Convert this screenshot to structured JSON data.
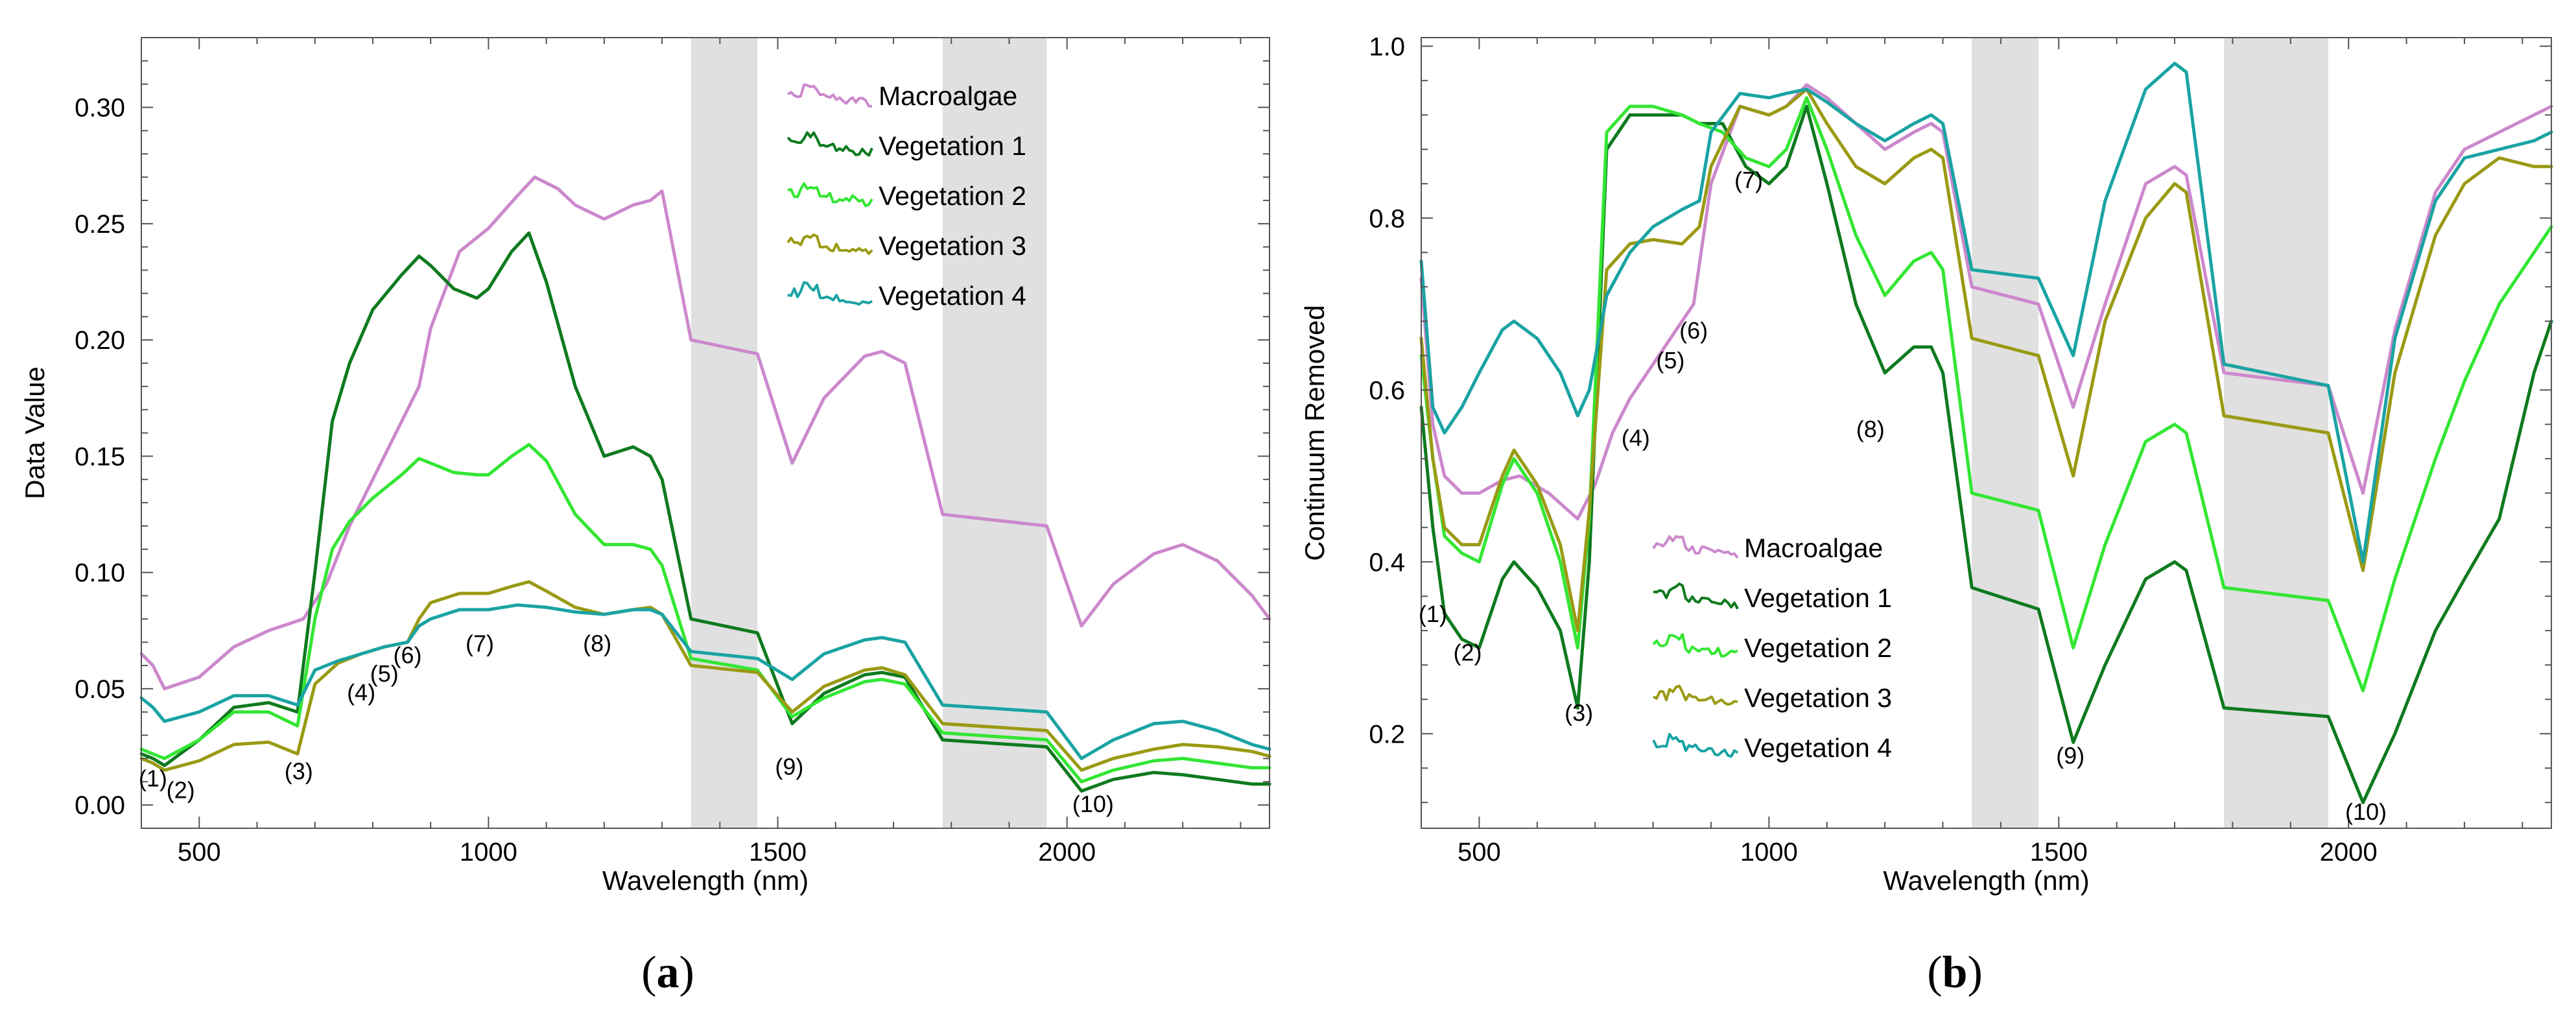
{
  "chart_data": [
    {
      "id": "a",
      "type": "line",
      "panel_label": "a",
      "xlabel": "Wavelength (nm)",
      "ylabel": "Data Value",
      "xlim": [
        400,
        2350
      ],
      "ylim": [
        -0.01,
        0.33
      ],
      "xticks": [
        500,
        1000,
        1500,
        2000
      ],
      "xtick_labels": [
        "500",
        "1000",
        "1500",
        "2000"
      ],
      "yticks": [
        0.0,
        0.05,
        0.1,
        0.15,
        0.2,
        0.25,
        0.3
      ],
      "ytick_labels": [
        "0.00",
        "0.05",
        "0.10",
        "0.15",
        "0.20",
        "0.25",
        "0.30"
      ],
      "legend_position": "top-center",
      "shaded_bands": [
        [
          1350,
          1465
        ],
        [
          1785,
          1965
        ]
      ],
      "annotations": [
        {
          "text": "(1)",
          "x": 420,
          "y": 0.008
        },
        {
          "text": "(2)",
          "x": 468,
          "y": 0.003
        },
        {
          "text": "(3)",
          "x": 672,
          "y": 0.011
        },
        {
          "text": "(4)",
          "x": 780,
          "y": 0.045
        },
        {
          "text": "(5)",
          "x": 820,
          "y": 0.053
        },
        {
          "text": "(6)",
          "x": 860,
          "y": 0.061
        },
        {
          "text": "(7)",
          "x": 985,
          "y": 0.066
        },
        {
          "text": "(8)",
          "x": 1188,
          "y": 0.066
        },
        {
          "text": "(9)",
          "x": 1520,
          "y": 0.013
        },
        {
          "text": "(10)",
          "x": 2045,
          "y": -0.003
        }
      ],
      "series": [
        {
          "name": "Macroalgae",
          "color": "#cc88cc",
          "x": [
            400,
            420,
            440,
            500,
            560,
            620,
            680,
            720,
            760,
            800,
            840,
            880,
            900,
            950,
            1000,
            1050,
            1080,
            1120,
            1150,
            1200,
            1250,
            1280,
            1300,
            1350,
            1465,
            1525,
            1580,
            1650,
            1680,
            1720,
            1785,
            1965,
            2025,
            2080,
            2150,
            2200,
            2260,
            2320,
            2350
          ],
          "y": [
            0.065,
            0.06,
            0.05,
            0.055,
            0.068,
            0.075,
            0.08,
            0.095,
            0.12,
            0.14,
            0.16,
            0.18,
            0.205,
            0.238,
            0.248,
            0.262,
            0.27,
            0.265,
            0.258,
            0.252,
            0.258,
            0.26,
            0.264,
            0.2,
            0.194,
            0.147,
            0.175,
            0.193,
            0.195,
            0.19,
            0.125,
            0.12,
            0.077,
            0.095,
            0.108,
            0.112,
            0.105,
            0.09,
            0.08
          ]
        },
        {
          "name": "Vegetation 1",
          "color": "#0e7a1e",
          "x": [
            400,
            420,
            440,
            500,
            560,
            620,
            670,
            700,
            730,
            760,
            800,
            850,
            880,
            900,
            940,
            980,
            1000,
            1040,
            1070,
            1100,
            1150,
            1200,
            1250,
            1280,
            1300,
            1350,
            1465,
            1525,
            1580,
            1650,
            1680,
            1720,
            1785,
            1965,
            2025,
            2080,
            2150,
            2200,
            2260,
            2320,
            2350
          ],
          "y": [
            0.022,
            0.02,
            0.017,
            0.028,
            0.042,
            0.044,
            0.04,
            0.1,
            0.165,
            0.19,
            0.213,
            0.228,
            0.236,
            0.232,
            0.222,
            0.218,
            0.222,
            0.238,
            0.246,
            0.225,
            0.18,
            0.15,
            0.154,
            0.15,
            0.14,
            0.08,
            0.074,
            0.035,
            0.048,
            0.056,
            0.057,
            0.055,
            0.028,
            0.025,
            0.006,
            0.011,
            0.014,
            0.013,
            0.011,
            0.009,
            0.009
          ]
        },
        {
          "name": "Vegetation 2",
          "color": "#33e633",
          "x": [
            400,
            420,
            440,
            500,
            560,
            620,
            670,
            700,
            730,
            760,
            800,
            850,
            880,
            900,
            940,
            980,
            1000,
            1040,
            1070,
            1100,
            1150,
            1200,
            1250,
            1280,
            1300,
            1350,
            1465,
            1525,
            1580,
            1650,
            1680,
            1720,
            1785,
            1965,
            2025,
            2080,
            2150,
            2200,
            2260,
            2320,
            2350
          ],
          "y": [
            0.024,
            0.022,
            0.02,
            0.028,
            0.04,
            0.04,
            0.034,
            0.08,
            0.11,
            0.122,
            0.132,
            0.142,
            0.149,
            0.147,
            0.143,
            0.142,
            0.142,
            0.15,
            0.155,
            0.148,
            0.125,
            0.112,
            0.112,
            0.11,
            0.103,
            0.063,
            0.058,
            0.038,
            0.046,
            0.053,
            0.054,
            0.052,
            0.031,
            0.028,
            0.01,
            0.015,
            0.019,
            0.02,
            0.018,
            0.016,
            0.016
          ]
        },
        {
          "name": "Vegetation 3",
          "color": "#9a9a14",
          "x": [
            400,
            420,
            440,
            500,
            560,
            620,
            670,
            700,
            740,
            780,
            820,
            860,
            880,
            900,
            950,
            1000,
            1040,
            1070,
            1100,
            1150,
            1200,
            1250,
            1280,
            1300,
            1350,
            1465,
            1525,
            1580,
            1650,
            1680,
            1720,
            1785,
            1965,
            2025,
            2080,
            2150,
            2200,
            2260,
            2320,
            2350
          ],
          "y": [
            0.02,
            0.018,
            0.015,
            0.019,
            0.026,
            0.027,
            0.022,
            0.052,
            0.061,
            0.065,
            0.068,
            0.07,
            0.08,
            0.087,
            0.091,
            0.091,
            0.094,
            0.096,
            0.092,
            0.085,
            0.082,
            0.084,
            0.085,
            0.082,
            0.06,
            0.057,
            0.04,
            0.051,
            0.058,
            0.059,
            0.056,
            0.035,
            0.032,
            0.015,
            0.02,
            0.024,
            0.026,
            0.025,
            0.023,
            0.021
          ]
        },
        {
          "name": "Vegetation 4",
          "color": "#1aa3a3",
          "x": [
            400,
            420,
            440,
            500,
            560,
            620,
            670,
            700,
            740,
            780,
            820,
            860,
            880,
            900,
            950,
            1000,
            1050,
            1100,
            1150,
            1200,
            1250,
            1280,
            1300,
            1350,
            1465,
            1525,
            1580,
            1650,
            1680,
            1720,
            1785,
            1965,
            2025,
            2080,
            2150,
            2200,
            2260,
            2320,
            2350
          ],
          "y": [
            0.046,
            0.042,
            0.036,
            0.04,
            0.047,
            0.047,
            0.043,
            0.058,
            0.062,
            0.065,
            0.068,
            0.07,
            0.077,
            0.08,
            0.084,
            0.084,
            0.086,
            0.085,
            0.083,
            0.082,
            0.084,
            0.084,
            0.082,
            0.066,
            0.063,
            0.054,
            0.065,
            0.071,
            0.072,
            0.07,
            0.043,
            0.04,
            0.02,
            0.028,
            0.035,
            0.036,
            0.032,
            0.026,
            0.024
          ]
        }
      ]
    },
    {
      "id": "b",
      "type": "line",
      "panel_label": "b",
      "xlabel": "Wavelength (nm)",
      "ylabel": "Continuum Removed",
      "xlim": [
        400,
        2350
      ],
      "ylim": [
        0.09,
        1.01
      ],
      "xticks": [
        500,
        1000,
        1500,
        2000
      ],
      "xtick_labels": [
        "500",
        "1000",
        "1500",
        "2000"
      ],
      "yticks": [
        0.2,
        0.4,
        0.6,
        0.8,
        1.0
      ],
      "ytick_labels": [
        "0.2",
        "0.4",
        "0.6",
        "0.8",
        "1.0"
      ],
      "legend_position": "center-left",
      "shaded_bands": [
        [
          1350,
          1465
        ],
        [
          1785,
          1965
        ]
      ],
      "annotations": [
        {
          "text": "(1)",
          "x": 420,
          "y": 0.33
        },
        {
          "text": "(2)",
          "x": 480,
          "y": 0.285
        },
        {
          "text": "(3)",
          "x": 672,
          "y": 0.215
        },
        {
          "text": "(4)",
          "x": 770,
          "y": 0.535
        },
        {
          "text": "(5)",
          "x": 830,
          "y": 0.625
        },
        {
          "text": "(6)",
          "x": 870,
          "y": 0.66
        },
        {
          "text": "(7)",
          "x": 965,
          "y": 0.835
        },
        {
          "text": "(8)",
          "x": 1175,
          "y": 0.545
        },
        {
          "text": "(9)",
          "x": 1520,
          "y": 0.165
        },
        {
          "text": "(10)",
          "x": 2030,
          "y": 0.1
        }
      ],
      "series": [
        {
          "name": "Macroalgae",
          "color": "#cc88cc",
          "x": [
            400,
            420,
            440,
            470,
            500,
            540,
            570,
            620,
            670,
            700,
            730,
            760,
            800,
            830,
            870,
            900,
            950,
            1000,
            1030,
            1065,
            1100,
            1150,
            1200,
            1250,
            1280,
            1300,
            1350,
            1465,
            1525,
            1580,
            1650,
            1700,
            1720,
            1785,
            1965,
            2025,
            2080,
            2150,
            2200,
            2260,
            2320,
            2350
          ],
          "y": [
            0.73,
            0.56,
            0.5,
            0.48,
            0.48,
            0.495,
            0.5,
            0.48,
            0.45,
            0.49,
            0.55,
            0.59,
            0.63,
            0.66,
            0.7,
            0.84,
            0.93,
            0.92,
            0.93,
            0.955,
            0.94,
            0.91,
            0.88,
            0.9,
            0.91,
            0.9,
            0.72,
            0.7,
            0.58,
            0.7,
            0.84,
            0.86,
            0.85,
            0.62,
            0.605,
            0.48,
            0.67,
            0.83,
            0.88,
            0.9,
            0.92,
            0.93
          ]
        },
        {
          "name": "Vegetation 1",
          "color": "#0e7a1e",
          "x": [
            400,
            420,
            440,
            470,
            500,
            540,
            560,
            600,
            640,
            670,
            690,
            720,
            760,
            800,
            850,
            880,
            920,
            960,
            1000,
            1030,
            1065,
            1100,
            1150,
            1200,
            1250,
            1280,
            1300,
            1350,
            1465,
            1525,
            1580,
            1650,
            1700,
            1720,
            1785,
            1965,
            2025,
            2080,
            2150,
            2200,
            2260,
            2320,
            2350
          ],
          "y": [
            0.58,
            0.44,
            0.34,
            0.31,
            0.3,
            0.38,
            0.4,
            0.37,
            0.32,
            0.23,
            0.4,
            0.88,
            0.92,
            0.92,
            0.92,
            0.91,
            0.91,
            0.86,
            0.84,
            0.86,
            0.93,
            0.84,
            0.7,
            0.62,
            0.65,
            0.65,
            0.62,
            0.37,
            0.345,
            0.19,
            0.28,
            0.38,
            0.4,
            0.39,
            0.23,
            0.22,
            0.12,
            0.2,
            0.32,
            0.38,
            0.45,
            0.62,
            0.68
          ]
        },
        {
          "name": "Vegetation 2",
          "color": "#33e633",
          "x": [
            400,
            420,
            440,
            470,
            500,
            540,
            560,
            600,
            640,
            670,
            690,
            720,
            760,
            800,
            850,
            880,
            920,
            960,
            1000,
            1030,
            1065,
            1100,
            1150,
            1200,
            1250,
            1280,
            1300,
            1350,
            1465,
            1525,
            1580,
            1650,
            1700,
            1720,
            1785,
            1965,
            2025,
            2080,
            2150,
            2200,
            2260,
            2320,
            2350
          ],
          "y": [
            0.64,
            0.52,
            0.43,
            0.41,
            0.4,
            0.49,
            0.52,
            0.48,
            0.4,
            0.3,
            0.45,
            0.9,
            0.93,
            0.93,
            0.92,
            0.91,
            0.9,
            0.87,
            0.86,
            0.88,
            0.94,
            0.88,
            0.78,
            0.71,
            0.75,
            0.76,
            0.74,
            0.48,
            0.46,
            0.3,
            0.42,
            0.54,
            0.56,
            0.55,
            0.37,
            0.355,
            0.25,
            0.38,
            0.52,
            0.61,
            0.7,
            0.76,
            0.79
          ]
        },
        {
          "name": "Vegetation 3",
          "color": "#9a9a14",
          "x": [
            400,
            420,
            440,
            470,
            500,
            540,
            560,
            600,
            640,
            670,
            690,
            720,
            760,
            800,
            850,
            880,
            900,
            950,
            1000,
            1030,
            1065,
            1100,
            1150,
            1200,
            1250,
            1280,
            1300,
            1350,
            1465,
            1525,
            1580,
            1650,
            1700,
            1720,
            1785,
            1965,
            2025,
            2080,
            2150,
            2200,
            2260,
            2320,
            2350
          ],
          "y": [
            0.66,
            0.52,
            0.44,
            0.42,
            0.42,
            0.5,
            0.53,
            0.49,
            0.42,
            0.32,
            0.46,
            0.74,
            0.77,
            0.775,
            0.77,
            0.79,
            0.86,
            0.93,
            0.92,
            0.93,
            0.95,
            0.91,
            0.86,
            0.84,
            0.87,
            0.88,
            0.87,
            0.66,
            0.64,
            0.5,
            0.68,
            0.8,
            0.84,
            0.83,
            0.57,
            0.55,
            0.39,
            0.62,
            0.78,
            0.84,
            0.87,
            0.86,
            0.86
          ]
        },
        {
          "name": "Vegetation 4",
          "color": "#1aa3a3",
          "x": [
            400,
            420,
            440,
            470,
            500,
            540,
            560,
            600,
            640,
            670,
            690,
            720,
            760,
            800,
            850,
            880,
            900,
            950,
            1000,
            1030,
            1065,
            1100,
            1150,
            1200,
            1250,
            1280,
            1300,
            1350,
            1465,
            1525,
            1580,
            1650,
            1700,
            1720,
            1785,
            1965,
            2025,
            2080,
            2150,
            2200,
            2260,
            2320,
            2350
          ],
          "y": [
            0.75,
            0.58,
            0.55,
            0.58,
            0.62,
            0.67,
            0.68,
            0.66,
            0.62,
            0.57,
            0.6,
            0.71,
            0.76,
            0.79,
            0.81,
            0.82,
            0.9,
            0.945,
            0.94,
            0.945,
            0.95,
            0.935,
            0.91,
            0.89,
            0.91,
            0.92,
            0.91,
            0.74,
            0.73,
            0.64,
            0.82,
            0.95,
            0.98,
            0.97,
            0.63,
            0.605,
            0.4,
            0.66,
            0.82,
            0.87,
            0.88,
            0.89,
            0.9
          ]
        }
      ]
    }
  ]
}
